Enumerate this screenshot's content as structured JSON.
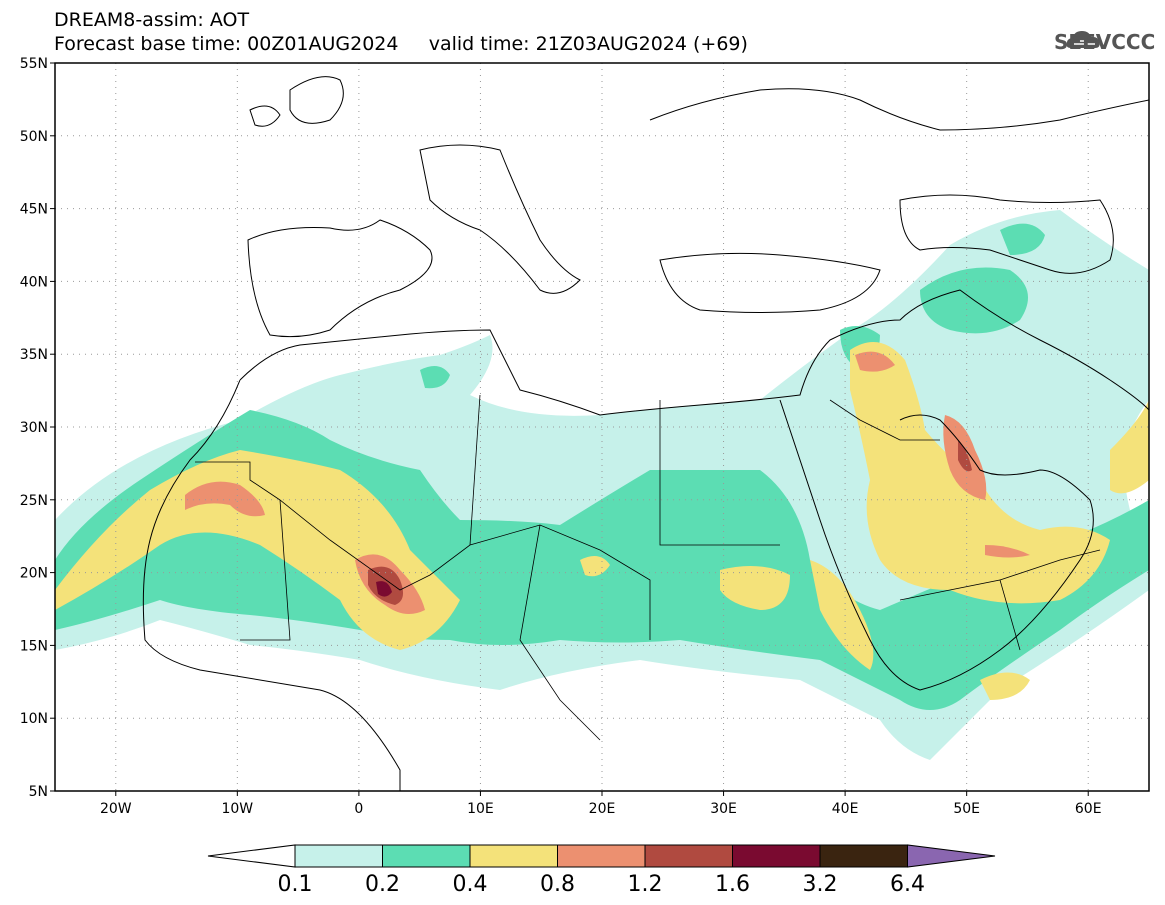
{
  "header": {
    "model_line": "DREAM8-assim: AOT",
    "base_time_label": "Forecast base time: 00Z01AUG2024",
    "valid_time_label": "valid time: 21Z03AUG2024 (+69)"
  },
  "logo": {
    "text": "SEEVCCC",
    "icon": "cloud-logo-icon"
  },
  "axes": {
    "lat_labels": [
      "55N",
      "50N",
      "45N",
      "40N",
      "35N",
      "30N",
      "25N",
      "20N",
      "15N",
      "10N",
      "5N"
    ],
    "lat_values": [
      55,
      50,
      45,
      40,
      35,
      30,
      25,
      20,
      15,
      10,
      5
    ],
    "lon_labels": [
      "20W",
      "10W",
      "0",
      "10E",
      "20E",
      "30E",
      "40E",
      "50E",
      "60E"
    ],
    "lon_values": [
      -20,
      -10,
      0,
      10,
      20,
      30,
      40,
      50,
      60
    ],
    "lon_range": [
      -25,
      65
    ],
    "lat_range": [
      5,
      55
    ],
    "grid": "dotted"
  },
  "colorbar": {
    "labels": [
      "0.1",
      "0.2",
      "0.4",
      "0.8",
      "1.2",
      "1.6",
      "3.2",
      "6.4"
    ],
    "colors": [
      "#c6f1ea",
      "#5cddb3",
      "#f4e27a",
      "#ec9070",
      "#b04a40",
      "#7a0a30",
      "#3a2410",
      "#8a66b0"
    ],
    "under_color": "#ffffff"
  },
  "colors": {
    "c1": "#c6f1ea",
    "c2": "#5cddb3",
    "c3": "#f4e27a",
    "c4": "#ec9070",
    "c5": "#b04a40",
    "c6": "#7a0a30"
  }
}
